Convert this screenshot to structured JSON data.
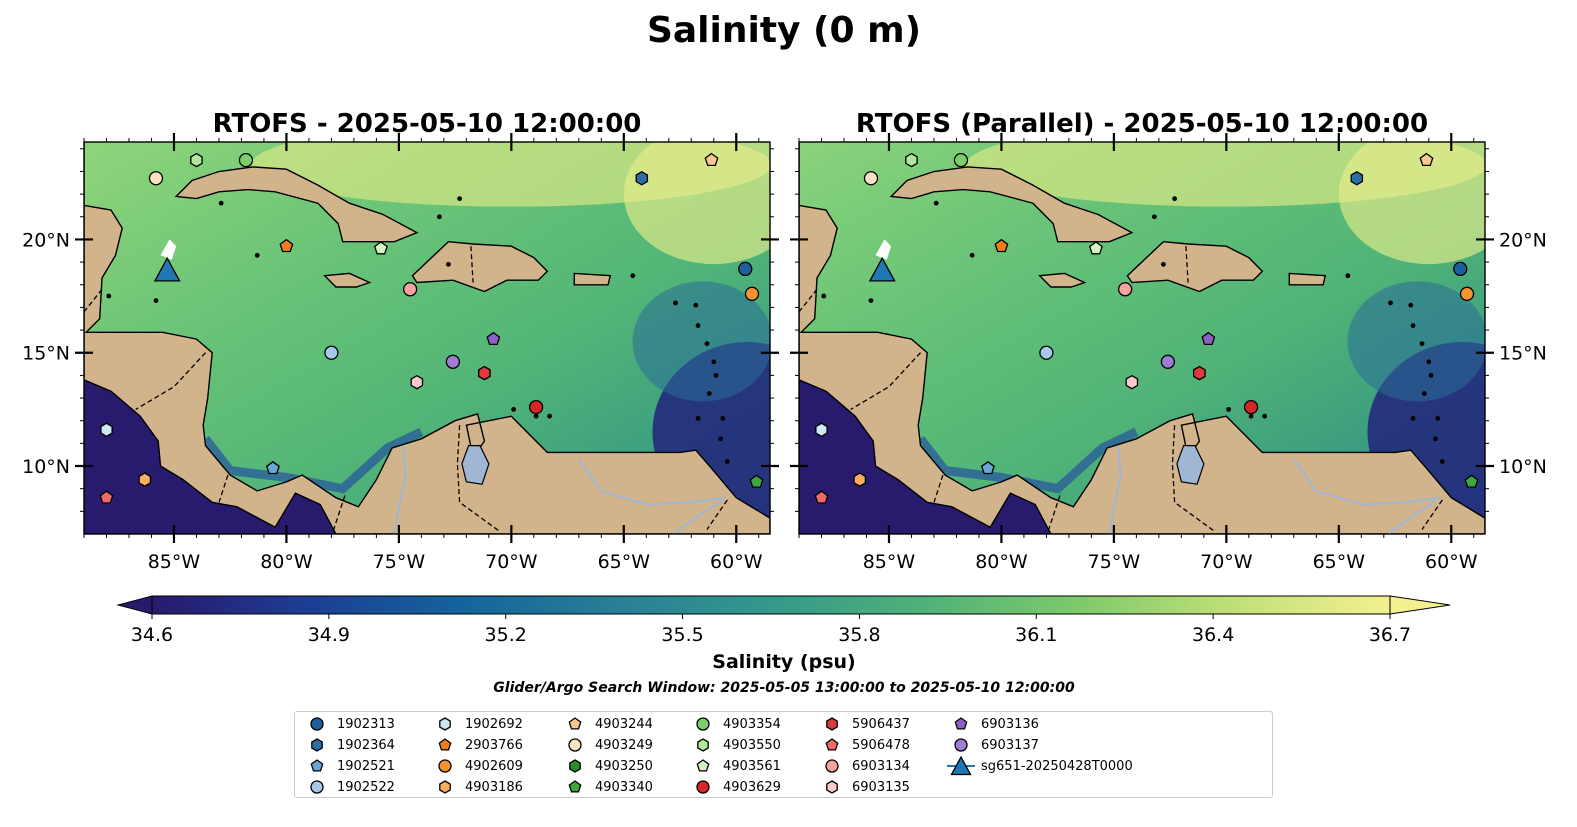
{
  "suptitle": "Salinity (0 m)",
  "colorbar": {
    "label": "Salinity (psu)",
    "ticks": [
      "34.6",
      "34.9",
      "35.2",
      "35.5",
      "35.8",
      "36.1",
      "36.4",
      "36.7"
    ],
    "range": [
      34.6,
      36.7
    ],
    "colormap": [
      "#281a6c",
      "#1d3d94",
      "#14649c",
      "#287f96",
      "#33998c",
      "#4fb277",
      "#7fca6b",
      "#c2e077",
      "#f3f08f"
    ]
  },
  "search_window": "Glider/Argo Search Window: 2025-05-05 13:00:00 to 2025-05-10 12:00:00",
  "colors": {
    "land": "#d2b48c",
    "deep_ocean": "#281a6c",
    "rivers": "#9fb6d4",
    "sea_field": "#5cbb72"
  },
  "chart_data": [
    {
      "type": "map",
      "title": "RTOFS - 2025-05-10 12:00:00",
      "x_ticks": [
        "85°W",
        "80°W",
        "75°W",
        "70°W",
        "65°W",
        "60°W"
      ],
      "y_ticks": [
        "10°N",
        "15°N",
        "20°N"
      ],
      "y_axis_side": "left",
      "lon_range": [
        -89,
        -58.5
      ],
      "lat_range": [
        7,
        24.3
      ],
      "markers": [
        {
          "id": "1902313",
          "lon": -59.6,
          "lat": 18.7
        },
        {
          "id": "1902364",
          "lon": -64.2,
          "lat": 22.7
        },
        {
          "id": "1902522",
          "lon": -78.0,
          "lat": 15.0
        },
        {
          "id": "1902521",
          "lon": -80.6,
          "lat": 9.9
        },
        {
          "id": "1902692",
          "lon": -88.0,
          "lat": 11.6
        },
        {
          "id": "2903766",
          "lon": -80.0,
          "lat": 19.7
        },
        {
          "id": "4902609",
          "lon": -59.3,
          "lat": 17.6
        },
        {
          "id": "4903186",
          "lon": -86.3,
          "lat": 9.4
        },
        {
          "id": "4903244",
          "lon": -61.1,
          "lat": 23.5
        },
        {
          "id": "4903249",
          "lon": -85.8,
          "lat": 22.7
        },
        {
          "id": "4903250",
          "lon": -71.2,
          "lat": 14.1
        },
        {
          "id": "4903340",
          "lon": -59.1,
          "lat": 9.3
        },
        {
          "id": "4903354",
          "lon": -81.8,
          "lat": 23.5
        },
        {
          "id": "4903550",
          "lon": -84.0,
          "lat": 23.5
        },
        {
          "id": "4903561",
          "lon": -75.8,
          "lat": 19.6
        },
        {
          "id": "4903629",
          "lon": -68.9,
          "lat": 12.6
        },
        {
          "id": "5906437",
          "lon": -71.2,
          "lat": 14.1
        },
        {
          "id": "5906478",
          "lon": -88.0,
          "lat": 8.6
        },
        {
          "id": "6903134",
          "lon": -74.5,
          "lat": 17.8
        },
        {
          "id": "6903135",
          "lon": -74.2,
          "lat": 13.7
        },
        {
          "id": "6903136",
          "lon": -70.8,
          "lat": 15.6
        },
        {
          "id": "6903137",
          "lon": -72.6,
          "lat": 14.6
        },
        {
          "id": "sg651-20250428T0000",
          "lon": -85.3,
          "lat": 18.6
        }
      ]
    },
    {
      "type": "map",
      "title": "RTOFS (Parallel) - 2025-05-10 12:00:00",
      "x_ticks": [
        "85°W",
        "80°W",
        "75°W",
        "70°W",
        "65°W",
        "60°W"
      ],
      "y_ticks": [
        "10°N",
        "15°N",
        "20°N"
      ],
      "y_axis_side": "right",
      "lon_range": [
        -89,
        -58.5
      ],
      "lat_range": [
        7,
        24.3
      ],
      "markers": [
        {
          "id": "1902313",
          "lon": -59.6,
          "lat": 18.7
        },
        {
          "id": "1902364",
          "lon": -64.2,
          "lat": 22.7
        },
        {
          "id": "1902522",
          "lon": -78.0,
          "lat": 15.0
        },
        {
          "id": "1902521",
          "lon": -80.6,
          "lat": 9.9
        },
        {
          "id": "1902692",
          "lon": -88.0,
          "lat": 11.6
        },
        {
          "id": "2903766",
          "lon": -80.0,
          "lat": 19.7
        },
        {
          "id": "4902609",
          "lon": -59.3,
          "lat": 17.6
        },
        {
          "id": "4903186",
          "lon": -86.3,
          "lat": 9.4
        },
        {
          "id": "4903244",
          "lon": -61.1,
          "lat": 23.5
        },
        {
          "id": "4903249",
          "lon": -85.8,
          "lat": 22.7
        },
        {
          "id": "4903250",
          "lon": -71.2,
          "lat": 14.1
        },
        {
          "id": "4903340",
          "lon": -59.1,
          "lat": 9.3
        },
        {
          "id": "4903354",
          "lon": -81.8,
          "lat": 23.5
        },
        {
          "id": "4903550",
          "lon": -84.0,
          "lat": 23.5
        },
        {
          "id": "4903561",
          "lon": -75.8,
          "lat": 19.6
        },
        {
          "id": "4903629",
          "lon": -68.9,
          "lat": 12.6
        },
        {
          "id": "5906437",
          "lon": -71.2,
          "lat": 14.1
        },
        {
          "id": "5906478",
          "lon": -88.0,
          "lat": 8.6
        },
        {
          "id": "6903134",
          "lon": -74.5,
          "lat": 17.8
        },
        {
          "id": "6903135",
          "lon": -74.2,
          "lat": 13.7
        },
        {
          "id": "6903136",
          "lon": -70.8,
          "lat": 15.6
        },
        {
          "id": "6903137",
          "lon": -72.6,
          "lat": 14.6
        },
        {
          "id": "sg651-20250428T0000",
          "lon": -85.3,
          "lat": 18.6
        }
      ]
    }
  ],
  "legend": [
    {
      "label": "1902313",
      "shape": "circle",
      "color": "#1f5f9e"
    },
    {
      "label": "1902364",
      "shape": "hexagon",
      "color": "#2c6fa8"
    },
    {
      "label": "1902521",
      "shape": "pentagon",
      "color": "#6aa7d9"
    },
    {
      "label": "1902522",
      "shape": "circle",
      "color": "#a6c8ea"
    },
    {
      "label": "1902692",
      "shape": "hexagon",
      "color": "#cfe8f7"
    },
    {
      "label": "2903766",
      "shape": "pentagon",
      "color": "#f07c1c"
    },
    {
      "label": "4902609",
      "shape": "circle",
      "color": "#f59331"
    },
    {
      "label": "4903186",
      "shape": "hexagon",
      "color": "#fbae62"
    },
    {
      "label": "4903244",
      "shape": "pentagon",
      "color": "#fcc78f"
    },
    {
      "label": "4903249",
      "shape": "circle",
      "color": "#fde2c1"
    },
    {
      "label": "4903250",
      "shape": "hexagon",
      "color": "#2a8e2a"
    },
    {
      "label": "4903340",
      "shape": "pentagon",
      "color": "#3ea83e"
    },
    {
      "label": "4903354",
      "shape": "circle",
      "color": "#7ccd6b"
    },
    {
      "label": "4903550",
      "shape": "hexagon",
      "color": "#aee79d"
    },
    {
      "label": "4903561",
      "shape": "pentagon",
      "color": "#d3f3c6"
    },
    {
      "label": "4903629",
      "shape": "circle",
      "color": "#d62728"
    },
    {
      "label": "5906437",
      "shape": "hexagon",
      "color": "#e03a3b"
    },
    {
      "label": "5906478",
      "shape": "pentagon",
      "color": "#ef6b6b"
    },
    {
      "label": "6903134",
      "shape": "circle",
      "color": "#f7a1a1"
    },
    {
      "label": "6903135",
      "shape": "hexagon",
      "color": "#fbcaca"
    },
    {
      "label": "6903136",
      "shape": "pentagon",
      "color": "#8b5fc4"
    },
    {
      "label": "6903137",
      "shape": "circle",
      "color": "#a07dd2"
    },
    {
      "label": "sg651-20250428T0000",
      "shape": "triangle",
      "color": "#1f77b4"
    }
  ]
}
